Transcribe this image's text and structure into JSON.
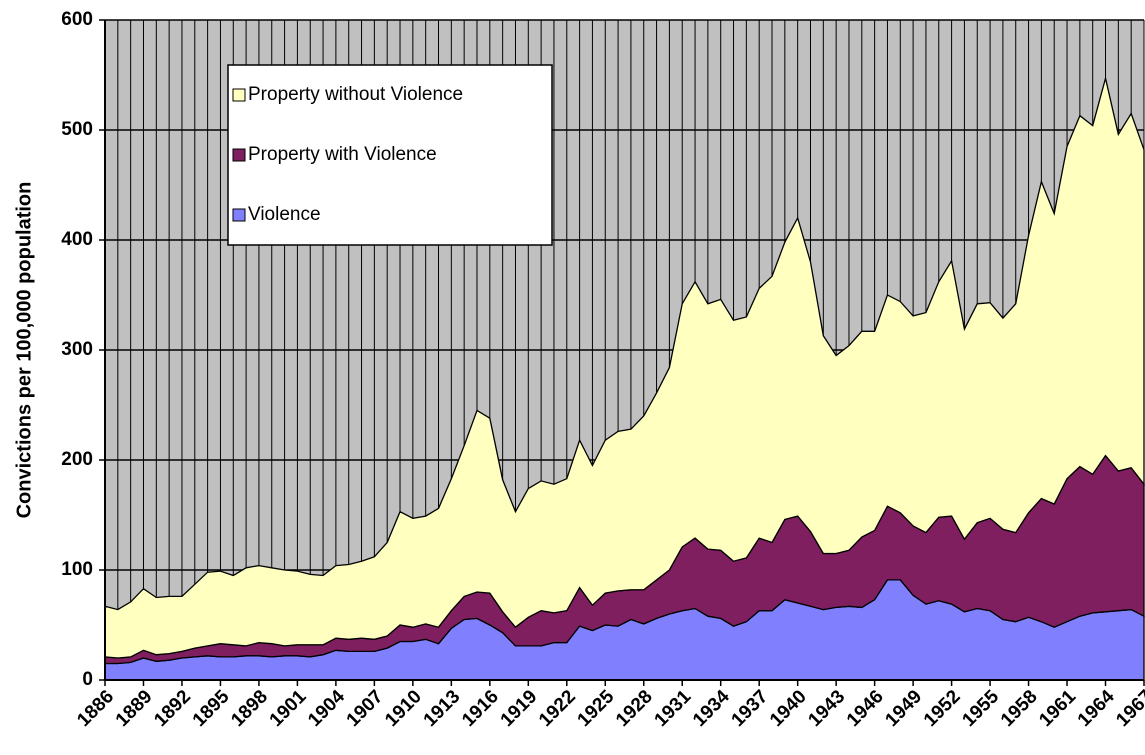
{
  "chart_data": {
    "type": "area",
    "stacked": true,
    "ylabel": "Convictions per 100,000 population",
    "x": [
      1886,
      1887,
      1888,
      1889,
      1890,
      1891,
      1892,
      1893,
      1894,
      1895,
      1896,
      1897,
      1898,
      1899,
      1900,
      1901,
      1902,
      1903,
      1904,
      1905,
      1906,
      1907,
      1908,
      1909,
      1910,
      1911,
      1912,
      1913,
      1914,
      1915,
      1916,
      1917,
      1918,
      1919,
      1920,
      1921,
      1922,
      1923,
      1924,
      1925,
      1926,
      1927,
      1928,
      1929,
      1930,
      1931,
      1932,
      1933,
      1934,
      1935,
      1936,
      1937,
      1938,
      1939,
      1940,
      1941,
      1942,
      1943,
      1944,
      1945,
      1946,
      1947,
      1948,
      1949,
      1950,
      1951,
      1952,
      1953,
      1954,
      1955,
      1956,
      1957,
      1958,
      1959,
      1960,
      1961,
      1962,
      1963,
      1964,
      1965,
      1966,
      1967
    ],
    "series": [
      {
        "name": "Violence",
        "color": "#8080ff",
        "values": [
          15,
          15,
          16,
          20,
          17,
          18,
          20,
          21,
          22,
          21,
          21,
          22,
          22,
          21,
          22,
          22,
          21,
          23,
          27,
          26,
          26,
          26,
          29,
          35,
          35,
          37,
          33,
          47,
          55,
          56,
          50,
          43,
          31,
          31,
          31,
          34,
          34,
          49,
          45,
          50,
          49,
          55,
          51,
          56,
          60,
          63,
          65,
          58,
          56,
          49,
          53,
          63,
          63,
          73,
          70,
          67,
          64,
          66,
          67,
          66,
          73,
          91,
          91,
          77,
          69,
          72,
          69,
          62,
          65,
          63,
          55,
          53,
          57,
          53,
          48,
          53,
          58,
          61,
          62,
          63,
          64,
          58
        ]
      },
      {
        "name": "Property with Violence",
        "color": "#7f1f5f",
        "values": [
          6,
          5,
          5,
          7,
          6,
          6,
          6,
          8,
          9,
          12,
          11,
          9,
          12,
          12,
          9,
          10,
          11,
          9,
          11,
          11,
          12,
          11,
          11,
          15,
          13,
          14,
          15,
          16,
          21,
          24,
          29,
          19,
          17,
          26,
          32,
          27,
          29,
          35,
          23,
          29,
          32,
          27,
          31,
          35,
          40,
          58,
          64,
          61,
          62,
          59,
          58,
          66,
          62,
          73,
          79,
          68,
          51,
          49,
          51,
          64,
          63,
          67,
          61,
          63,
          65,
          76,
          80,
          66,
          78,
          84,
          82,
          81,
          95,
          112,
          112,
          130,
          136,
          126,
          142,
          127,
          129,
          120
        ]
      },
      {
        "name": "Property without Violence",
        "color": "#ffffc0",
        "values": [
          46,
          44,
          50,
          56,
          52,
          52,
          50,
          58,
          67,
          66,
          63,
          71,
          70,
          69,
          69,
          67,
          64,
          63,
          66,
          68,
          70,
          75,
          85,
          103,
          99,
          98,
          108,
          120,
          137,
          165,
          159,
          120,
          105,
          117,
          118,
          117,
          120,
          134,
          127,
          139,
          145,
          146,
          158,
          170,
          184,
          221,
          233,
          223,
          228,
          219,
          219,
          227,
          242,
          252,
          271,
          245,
          198,
          180,
          186,
          187,
          181,
          192,
          192,
          191,
          200,
          214,
          232,
          191,
          199,
          196,
          192,
          208,
          252,
          288,
          264,
          302,
          319,
          317,
          343,
          306,
          322,
          304
        ]
      }
    ],
    "xlim": [
      1886,
      1967
    ],
    "xticks": [
      1886,
      1889,
      1892,
      1895,
      1898,
      1901,
      1904,
      1907,
      1910,
      1913,
      1916,
      1919,
      1922,
      1925,
      1928,
      1931,
      1934,
      1937,
      1940,
      1943,
      1946,
      1949,
      1952,
      1955,
      1958,
      1961,
      1964,
      1967
    ],
    "ylim": [
      0,
      600
    ],
    "yticks": [
      0,
      100,
      200,
      300,
      400,
      500,
      600
    ],
    "grid": true,
    "xgrid": true,
    "background": "#c0c0c0",
    "legend": "upper left",
    "legend_reversed": true
  }
}
